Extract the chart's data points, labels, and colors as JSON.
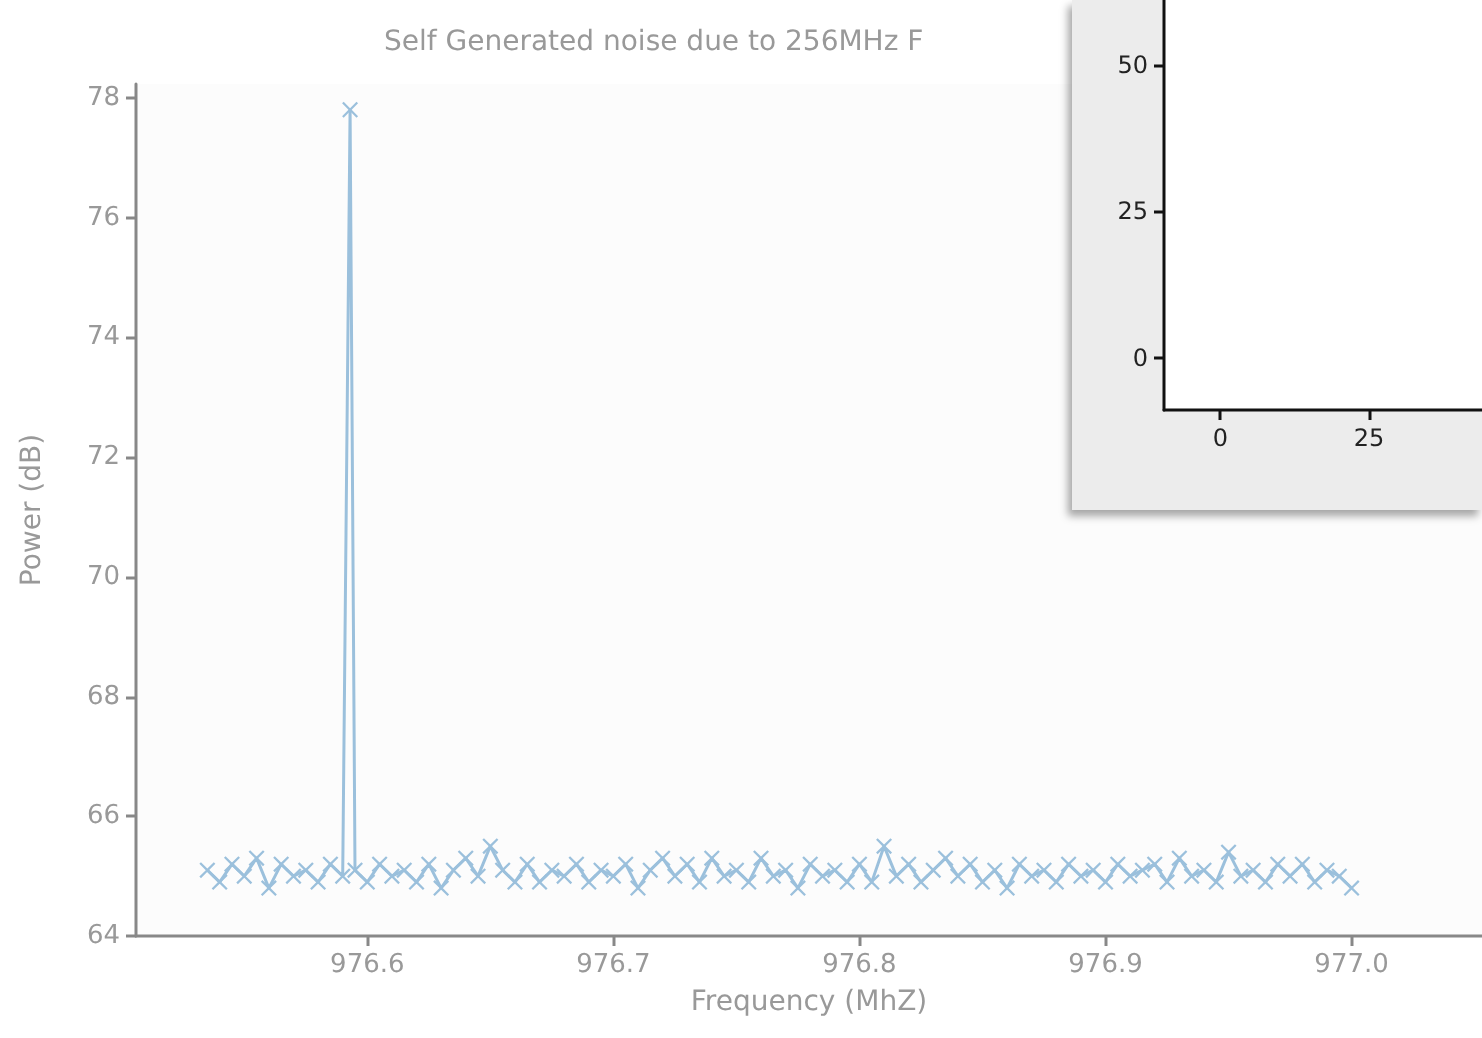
{
  "chart_data": [
    {
      "type": "line",
      "title": "Self Generated noise due to 256MHz F",
      "xlabel": "Frequency (MhZ)",
      "ylabel": "Power (dB)",
      "marker": "cross",
      "line_style": "solid",
      "xlim": [
        976.506,
        977.053
      ],
      "ylim": [
        64,
        78.23
      ],
      "xticks": [
        976.6,
        976.7,
        976.8,
        976.9,
        {
          "value": 977,
          "label": "977.0"
        }
      ],
      "yticks": [
        64,
        66,
        68,
        70,
        72,
        74,
        76,
        78
      ],
      "series": [
        {
          "color": "#9bc0dc",
          "x": [
            976.535,
            976.54,
            976.545,
            976.55,
            976.555,
            976.56,
            976.565,
            976.57,
            976.575,
            976.58,
            976.585,
            976.59,
            976.593,
            976.595,
            976.6,
            976.605,
            976.61,
            976.615,
            976.62,
            976.625,
            976.63,
            976.635,
            976.64,
            976.645,
            976.65,
            976.655,
            976.66,
            976.665,
            976.67,
            976.675,
            976.68,
            976.685,
            976.69,
            976.695,
            976.7,
            976.705,
            976.71,
            976.715,
            976.72,
            976.725,
            976.73,
            976.735,
            976.74,
            976.745,
            976.75,
            976.755,
            976.76,
            976.765,
            976.77,
            976.775,
            976.78,
            976.785,
            976.79,
            976.795,
            976.8,
            976.805,
            976.81,
            976.815,
            976.82,
            976.825,
            976.83,
            976.835,
            976.84,
            976.845,
            976.85,
            976.855,
            976.86,
            976.865,
            976.87,
            976.875,
            976.88,
            976.885,
            976.89,
            976.895,
            976.9,
            976.905,
            976.91,
            976.915,
            976.92,
            976.925,
            976.93,
            976.935,
            976.94,
            976.945,
            976.95,
            976.955,
            976.96,
            976.965,
            976.97,
            976.975,
            976.98,
            976.985,
            976.99,
            976.995,
            977.0
          ],
          "values": [
            65.1,
            64.9,
            65.2,
            65.0,
            65.3,
            64.8,
            65.2,
            65.0,
            65.1,
            64.9,
            65.2,
            65.0,
            77.8,
            65.1,
            64.9,
            65.2,
            65.0,
            65.1,
            64.9,
            65.2,
            64.8,
            65.1,
            65.3,
            65.0,
            65.5,
            65.1,
            64.9,
            65.2,
            64.9,
            65.1,
            65.0,
            65.2,
            64.9,
            65.1,
            65.0,
            65.2,
            64.8,
            65.1,
            65.3,
            65.0,
            65.2,
            64.9,
            65.3,
            65.0,
            65.1,
            64.9,
            65.3,
            65.0,
            65.1,
            64.8,
            65.2,
            65.0,
            65.1,
            64.9,
            65.2,
            64.9,
            65.5,
            65.0,
            65.2,
            64.9,
            65.1,
            65.3,
            65.0,
            65.2,
            64.9,
            65.1,
            64.8,
            65.2,
            65.0,
            65.1,
            64.9,
            65.2,
            65.0,
            65.1,
            64.9,
            65.2,
            65.0,
            65.1,
            65.2,
            64.9,
            65.3,
            65.0,
            65.1,
            64.9,
            65.4,
            65.0,
            65.1,
            64.9,
            65.2,
            65.0,
            65.2,
            64.9,
            65.1,
            65.0,
            64.8
          ]
        }
      ]
    },
    {
      "type": "line",
      "xlim": [
        -9.5,
        44
      ],
      "ylim": [
        -8.8,
        61
      ],
      "xticks": [
        0,
        25
      ],
      "yticks": [
        0,
        25,
        50
      ]
    }
  ]
}
